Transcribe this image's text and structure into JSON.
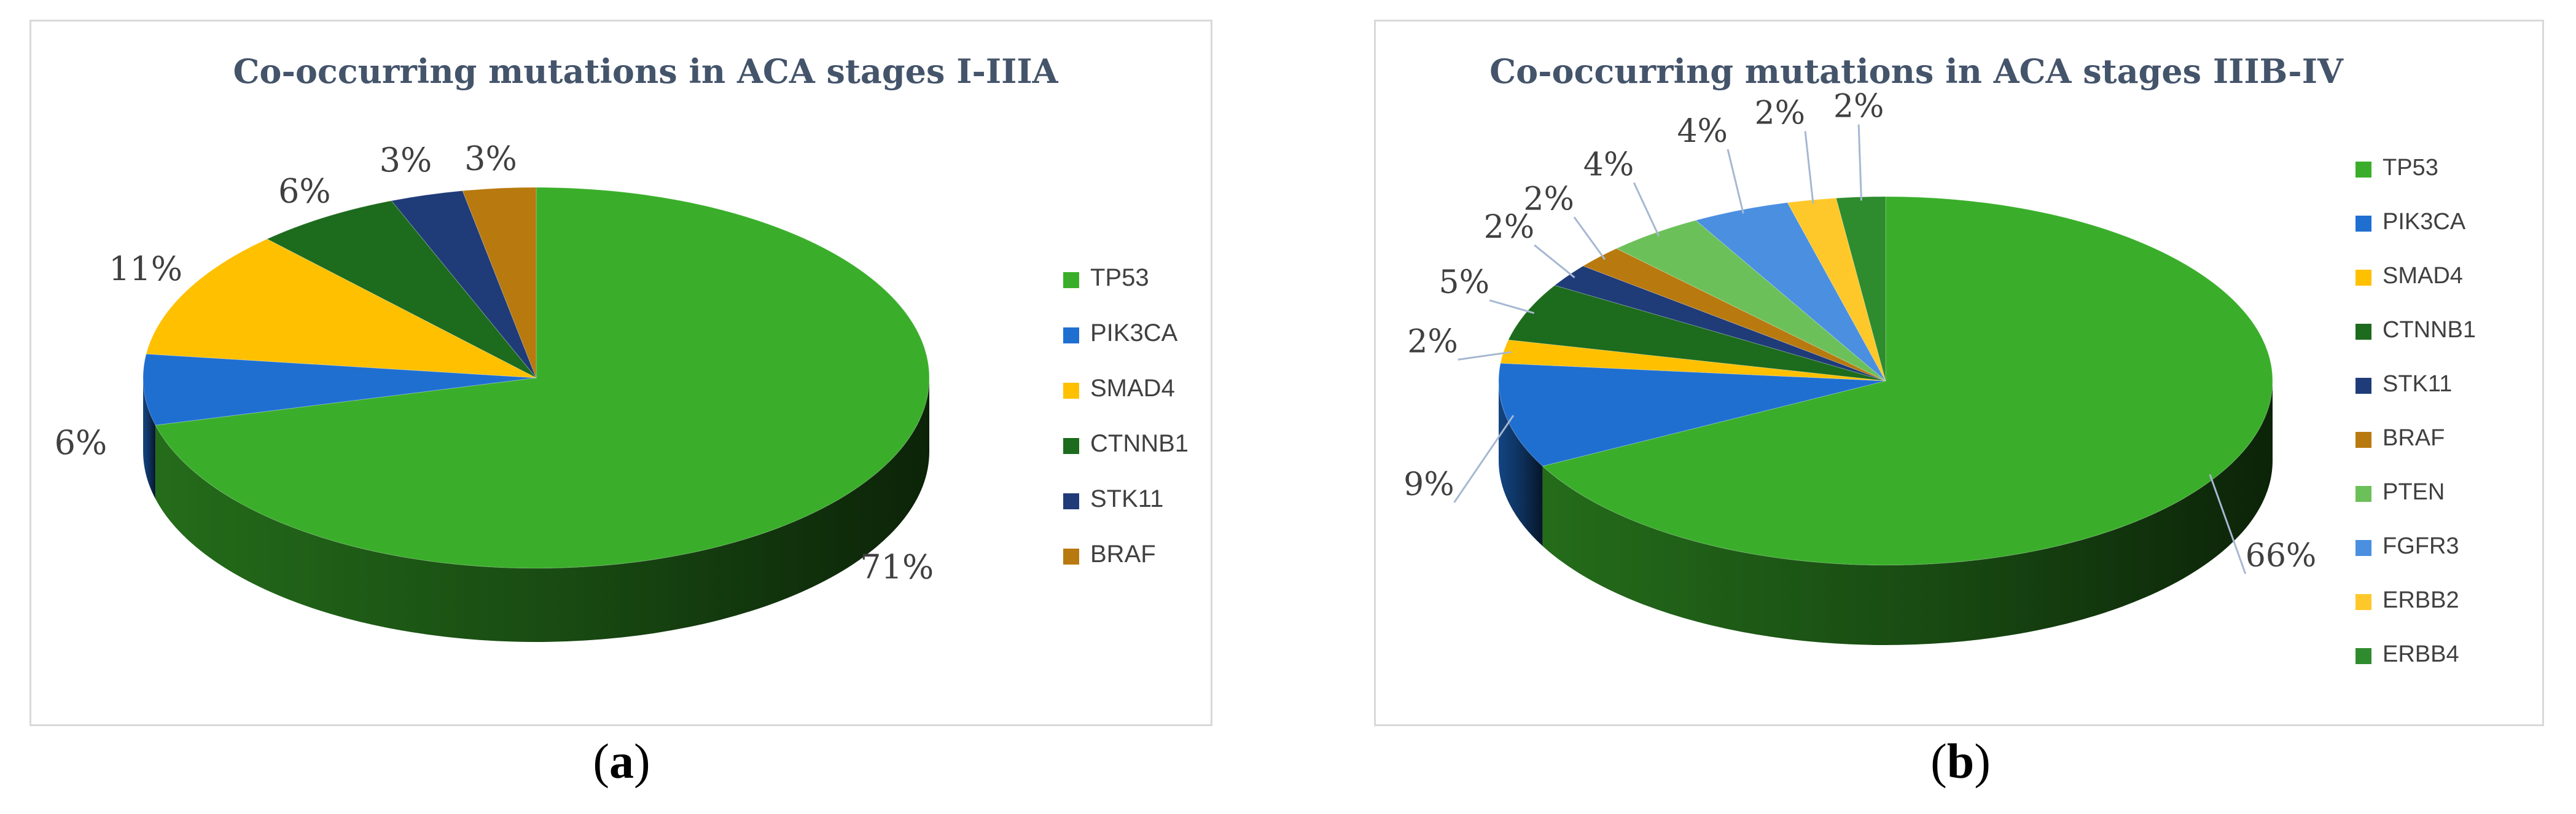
{
  "chart_data": [
    {
      "type": "pie",
      "title": "Co-occurring mutations in ACA stages I-IIIA",
      "categories": [
        "TP53",
        "PIK3CA",
        "SMAD4",
        "CTNNB1",
        "STK11",
        "BRAF"
      ],
      "values": [
        71,
        6,
        11,
        6,
        3,
        3
      ],
      "data_labels": [
        "71%",
        "6%",
        "11%",
        "6%",
        "3%",
        "3%"
      ],
      "colors": [
        "#3aae2a",
        "#1f6fd1",
        "#ffc000",
        "#1d6b1d",
        "#1f3b78",
        "#b8790e"
      ],
      "legend": "right",
      "grid": false
    },
    {
      "type": "pie",
      "title": "Co-occurring mutations in ACA stages IIIB-IV",
      "categories": [
        "TP53",
        "PIK3CA",
        "SMAD4",
        "CTNNB1",
        "STK11",
        "BRAF",
        "PTEN",
        "FGFR3",
        "ERBB2",
        "ERBB4"
      ],
      "values": [
        66,
        9,
        2,
        5,
        2,
        2,
        4,
        4,
        2,
        2
      ],
      "data_labels": [
        "66%",
        "9%",
        "2%",
        "5%",
        "2%",
        "2%",
        "4%",
        "4%",
        "2%",
        "2%"
      ],
      "colors": [
        "#3aae2a",
        "#1f6fd1",
        "#ffc000",
        "#1d6b1d",
        "#1f3b78",
        "#b8790e",
        "#6cc05a",
        "#4a8fe0",
        "#ffc82a",
        "#2e8b2e"
      ],
      "legend": "right",
      "grid": false
    }
  ],
  "captions": [
    {
      "open": "(",
      "letter": "a",
      "close": ")"
    },
    {
      "open": "(",
      "letter": "b",
      "close": ")"
    }
  ]
}
